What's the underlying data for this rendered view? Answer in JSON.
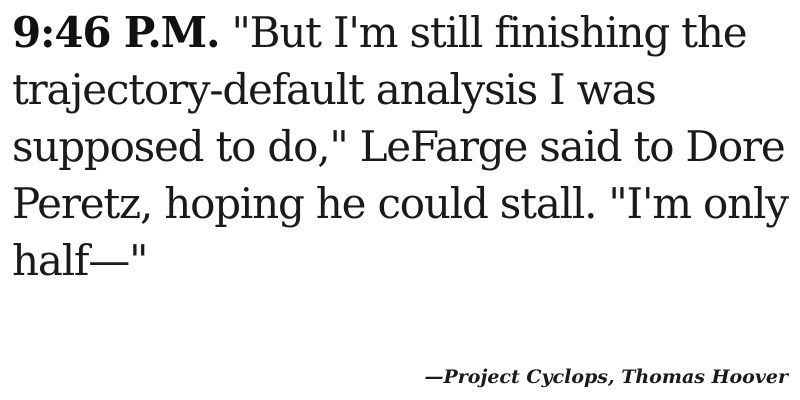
{
  "quote": {
    "time": "9:46 P.M.",
    "text": "\"But I'm still finishing the trajectory-default analysis I was supposed to do,\" LeFarge said to Dore Peretz, hoping he could stall. \"I'm only half—\""
  },
  "attribution": {
    "text": "—Project Cyclops, Thomas Hoover"
  }
}
